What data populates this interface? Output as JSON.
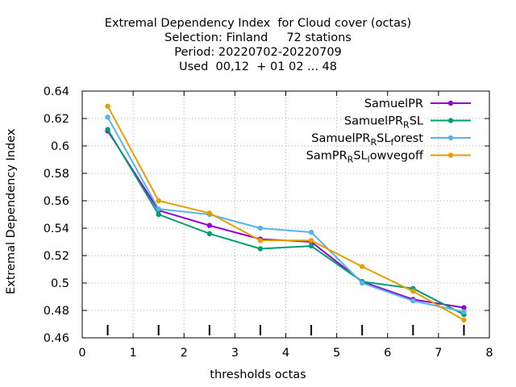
{
  "chart_data": {
    "type": "line",
    "title_lines": [
      "Extremal Dependency Index  for Cloud cover (octas)",
      "Selection: Finland     72 stations",
      "Period: 20220702-20220709",
      "Used  00,12  + 01 02 ... 48"
    ],
    "xlabel": "thresholds octas",
    "ylabel": "Extremal Dependency Index",
    "xlim": [
      0,
      8
    ],
    "ylim": [
      0.46,
      0.64
    ],
    "xticks": [
      0,
      1,
      2,
      3,
      4,
      5,
      6,
      7,
      8
    ],
    "yticks": [
      0.46,
      0.48,
      0.5,
      0.52,
      0.54,
      0.56,
      0.58,
      0.6,
      0.62,
      0.64
    ],
    "ytick_labels": [
      "0.46",
      "0.48",
      "0.5",
      "0.52",
      "0.54",
      "0.56",
      "0.58",
      "0.6",
      "0.62",
      "0.64"
    ],
    "grid": true,
    "legend_position": "top-right",
    "threshold_markers_x": [
      0.5,
      1.5,
      2.5,
      3.5,
      4.5,
      5.5,
      6.5,
      7.5
    ],
    "x": [
      0.5,
      1.5,
      2.5,
      3.5,
      4.5,
      5.5,
      6.5,
      7.5
    ],
    "series": [
      {
        "name": "SamuelPR",
        "name_parts": [
          [
            "SamuelPR",
            ""
          ]
        ],
        "color": "#9400d3",
        "values": [
          0.611,
          0.553,
          0.542,
          0.532,
          0.53,
          0.501,
          0.488,
          0.482
        ]
      },
      {
        "name": "SamuelPR_RSL",
        "name_parts": [
          [
            "SamuelPR",
            ""
          ],
          [
            "R",
            "sub"
          ],
          [
            "SL",
            ""
          ]
        ],
        "color": "#009e73",
        "values": [
          0.612,
          0.55,
          0.536,
          0.525,
          0.527,
          0.501,
          0.496,
          0.477
        ]
      },
      {
        "name": "SamuelPR_RSL_forest",
        "name_parts": [
          [
            "SamuelPR",
            ""
          ],
          [
            "R",
            "sub"
          ],
          [
            "SL",
            ""
          ],
          [
            "f",
            "sub"
          ],
          [
            "orest",
            ""
          ]
        ],
        "color": "#56b4e9",
        "values": [
          0.621,
          0.554,
          0.55,
          0.54,
          0.537,
          0.5,
          0.487,
          0.479
        ]
      },
      {
        "name": "SamPR_RSL_lowvegoff",
        "name_parts": [
          [
            "SamPR",
            ""
          ],
          [
            "R",
            "sub"
          ],
          [
            "SL",
            ""
          ],
          [
            "l",
            "sub"
          ],
          [
            "owvegoff",
            ""
          ]
        ],
        "color": "#e69f00",
        "values": [
          0.629,
          0.56,
          0.551,
          0.531,
          0.531,
          0.512,
          0.494,
          0.473
        ]
      }
    ]
  }
}
